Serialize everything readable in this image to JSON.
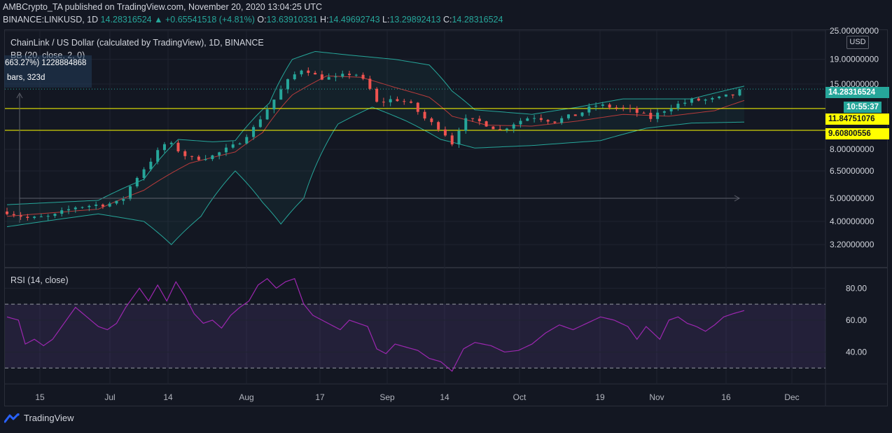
{
  "header": {
    "publisher": "AMBCrypto_TA published on TradingView.com, November 20, 2020 13:04:25 UTC",
    "symbol": "BINANCE:LINKUSD, 1D",
    "last": "14.28316524",
    "change_arrow": "▲",
    "change": "+0.65541518 (+4.81%)",
    "o_label": "O:",
    "o_value": "13.63910331",
    "h_label": "H:",
    "h_value": "14.49692743",
    "l_label": "L:",
    "l_value": "13.29892413",
    "c_label": "C:",
    "c_value": "14.28316524"
  },
  "legend": {
    "title": "ChainLink / US Dollar (calculated by TradingView), 1D, BINANCE",
    "bb": "BB (20, close, 2, 0)",
    "measure_line1": "663.27%) 1228884868",
    "measure_line2": "bars, 323d",
    "rsi": "RSI (14, close)"
  },
  "currency_label": "USD",
  "footer": {
    "brand": "TradingView"
  },
  "colors": {
    "up": "#26a69a",
    "down": "#ef5350",
    "bb_band": "#26a69a",
    "bb_basis": "#b83b3b",
    "level": "#ffff00",
    "rsi": "#9c27b0",
    "rsi_fill": "#7e57c2",
    "background": "#131722"
  },
  "chart_data": [
    {
      "type": "candlestick",
      "title": "ChainLink / US Dollar (calculated by TradingView), 1D, BINANCE",
      "scale": "log",
      "ylim": [
        2.6,
        25.0
      ],
      "y_ticks": [
        "25.00000000",
        "19.00000000",
        "15.00000000",
        "11.84751076",
        "9.60800556",
        "8.00000000",
        "6.50000000",
        "5.00000000",
        "4.00000000",
        "3.20000000"
      ],
      "y_tick_values": [
        25.0,
        19.0,
        15.0,
        11.84751076,
        9.608,
        8.0,
        6.5,
        5.0,
        4.0,
        3.2
      ],
      "x_ticks": [
        "15",
        "Jul",
        "14",
        "Aug",
        "17",
        "Sep",
        "14",
        "Oct",
        "19",
        "Nov",
        "16",
        "Dec"
      ],
      "horizontal_levels": [
        11.84751076,
        9.60800556
      ],
      "last_price": "14.28316524",
      "countdown": "10:55:37",
      "series": [
        {
          "name": "LINKUSD",
          "close_points": [
            [
              0,
              4.4
            ],
            [
              10,
              4.1
            ],
            [
              20,
              4.2
            ],
            [
              30,
              4.6
            ],
            [
              40,
              4.7
            ],
            [
              50,
              4.8
            ],
            [
              55,
              5.8
            ],
            [
              62,
              7.0
            ],
            [
              70,
              8.6
            ],
            [
              80,
              7.3
            ],
            [
              90,
              7.5
            ],
            [
              100,
              8.3
            ],
            [
              108,
              9.8
            ],
            [
              116,
              12.5
            ],
            [
              124,
              15.8
            ],
            [
              130,
              17.6
            ],
            [
              136,
              16.0
            ],
            [
              144,
              15.8
            ],
            [
              152,
              16.8
            ],
            [
              158,
              14.8
            ],
            [
              162,
              12.5
            ],
            [
              170,
              13.0
            ],
            [
              176,
              12.5
            ],
            [
              180,
              11.5
            ],
            [
              184,
              10.5
            ],
            [
              190,
              9.8
            ],
            [
              195,
              8.5
            ],
            [
              200,
              10.6
            ],
            [
              208,
              10.4
            ],
            [
              216,
              9.6
            ],
            [
              222,
              10.3
            ],
            [
              230,
              11.0
            ],
            [
              240,
              10.5
            ],
            [
              250,
              11.2
            ],
            [
              258,
              12.2
            ],
            [
              266,
              12.0
            ],
            [
              274,
              11.6
            ],
            [
              282,
              10.8
            ],
            [
              290,
              12.0
            ],
            [
              300,
              12.8
            ],
            [
              310,
              12.9
            ],
            [
              318,
              13.5
            ],
            [
              323,
              14.28
            ]
          ]
        },
        {
          "name": "BB upper",
          "points": [
            [
              0,
              4.7
            ],
            [
              40,
              4.9
            ],
            [
              60,
              6.0
            ],
            [
              75,
              8.8
            ],
            [
              90,
              8.6
            ],
            [
              100,
              8.7
            ],
            [
              115,
              12.5
            ],
            [
              125,
              19.0
            ],
            [
              135,
              20.5
            ],
            [
              150,
              19.8
            ],
            [
              170,
              19.0
            ],
            [
              185,
              18.0
            ],
            [
              195,
              14.0
            ],
            [
              205,
              11.7
            ],
            [
              230,
              11.2
            ],
            [
              250,
              12.0
            ],
            [
              270,
              13.0
            ],
            [
              300,
              13.0
            ],
            [
              323,
              14.7
            ]
          ]
        },
        {
          "name": "BB lower",
          "points": [
            [
              0,
              3.8
            ],
            [
              40,
              4.3
            ],
            [
              60,
              4.0
            ],
            [
              72,
              3.2
            ],
            [
              85,
              4.2
            ],
            [
              100,
              6.5
            ],
            [
              112,
              4.8
            ],
            [
              120,
              3.9
            ],
            [
              130,
              5.0
            ],
            [
              145,
              10.2
            ],
            [
              160,
              12.0
            ],
            [
              175,
              10.5
            ],
            [
              190,
              8.8
            ],
            [
              205,
              8.1
            ],
            [
              230,
              8.3
            ],
            [
              260,
              8.7
            ],
            [
              280,
              9.8
            ],
            [
              300,
              10.3
            ],
            [
              323,
              10.4
            ]
          ]
        },
        {
          "name": "BB basis",
          "points": [
            [
              0,
              4.2
            ],
            [
              40,
              4.5
            ],
            [
              60,
              5.4
            ],
            [
              80,
              7.0
            ],
            [
              100,
              7.8
            ],
            [
              112,
              9.4
            ],
            [
              125,
              13.5
            ],
            [
              140,
              16.2
            ],
            [
              155,
              16.0
            ],
            [
              170,
              14.5
            ],
            [
              185,
              13.2
            ],
            [
              195,
              11.0
            ],
            [
              210,
              10.1
            ],
            [
              230,
              10.0
            ],
            [
              250,
              10.5
            ],
            [
              270,
              11.2
            ],
            [
              290,
              11.0
            ],
            [
              310,
              11.6
            ],
            [
              323,
              12.8
            ]
          ]
        }
      ]
    },
    {
      "type": "line",
      "title": "RSI (14, close)",
      "ylim": [
        20,
        92
      ],
      "y_ticks": [
        "80.00",
        "60.00",
        "40.00"
      ],
      "y_tick_values": [
        80,
        60,
        40
      ],
      "bands": [
        70,
        30
      ],
      "series": [
        {
          "name": "RSI",
          "points": [
            [
              0,
              62
            ],
            [
              5,
              60
            ],
            [
              8,
              45
            ],
            [
              12,
              48
            ],
            [
              16,
              44
            ],
            [
              20,
              48
            ],
            [
              25,
              58
            ],
            [
              30,
              68
            ],
            [
              35,
              62
            ],
            [
              40,
              56
            ],
            [
              44,
              54
            ],
            [
              48,
              58
            ],
            [
              52,
              68
            ],
            [
              58,
              80
            ],
            [
              62,
              72
            ],
            [
              66,
              82
            ],
            [
              70,
              72
            ],
            [
              74,
              84
            ],
            [
              78,
              75
            ],
            [
              82,
              64
            ],
            [
              86,
              58
            ],
            [
              90,
              60
            ],
            [
              94,
              55
            ],
            [
              98,
              63
            ],
            [
              102,
              68
            ],
            [
              106,
              72
            ],
            [
              110,
              82
            ],
            [
              114,
              86
            ],
            [
              118,
              80
            ],
            [
              122,
              84
            ],
            [
              126,
              86
            ],
            [
              130,
              70
            ],
            [
              134,
              63
            ],
            [
              138,
              60
            ],
            [
              142,
              57
            ],
            [
              146,
              54
            ],
            [
              150,
              60
            ],
            [
              154,
              58
            ],
            [
              158,
              56
            ],
            [
              162,
              42
            ],
            [
              166,
              39
            ],
            [
              170,
              45
            ],
            [
              175,
              43
            ],
            [
              180,
              41
            ],
            [
              185,
              36
            ],
            [
              190,
              34
            ],
            [
              195,
              28
            ],
            [
              200,
              42
            ],
            [
              205,
              46
            ],
            [
              212,
              44
            ],
            [
              218,
              40
            ],
            [
              224,
              41
            ],
            [
              230,
              45
            ],
            [
              236,
              52
            ],
            [
              242,
              57
            ],
            [
              248,
              54
            ],
            [
              254,
              58
            ],
            [
              260,
              62
            ],
            [
              266,
              60
            ],
            [
              272,
              56
            ],
            [
              276,
              48
            ],
            [
              280,
              56
            ],
            [
              286,
              48
            ],
            [
              290,
              60
            ],
            [
              294,
              62
            ],
            [
              298,
              58
            ],
            [
              302,
              56
            ],
            [
              306,
              53
            ],
            [
              310,
              57
            ],
            [
              314,
              62
            ],
            [
              318,
              64
            ],
            [
              323,
              66
            ]
          ]
        }
      ]
    }
  ]
}
